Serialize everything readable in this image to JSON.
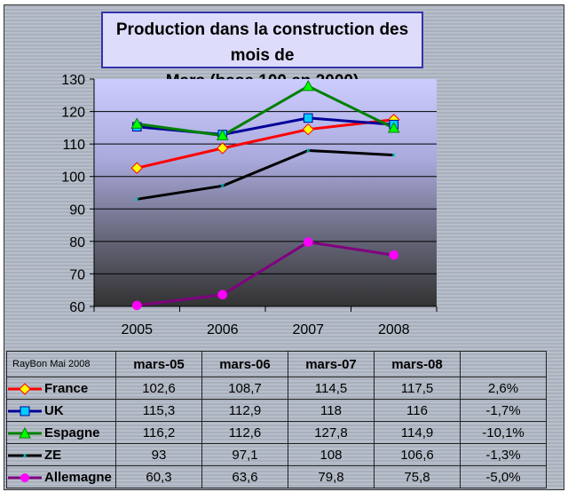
{
  "chart_data": {
    "type": "line",
    "title": "Production dans la construction des mois de Mars (base 100 en 2000)",
    "title_line1": "Production dans la construction des mois de",
    "title_line2": "Mars (base 100 en 2000)",
    "categories": [
      "2005",
      "2006",
      "2007",
      "2008"
    ],
    "ylim": [
      60,
      130
    ],
    "yticks": [
      "60",
      "70",
      "80",
      "90",
      "100",
      "110",
      "120",
      "130"
    ],
    "grid": true,
    "series": [
      {
        "name": "France",
        "values": [
          102.6,
          108.7,
          114.5,
          117.5
        ],
        "color": "#ff0000",
        "marker": "diamond",
        "fill": "#ffff00"
      },
      {
        "name": "UK",
        "values": [
          115.3,
          112.9,
          118,
          116
        ],
        "color": "#000099",
        "marker": "square",
        "fill": "#00ccff"
      },
      {
        "name": "Espagne",
        "values": [
          116.2,
          112.6,
          127.8,
          114.9
        ],
        "color": "#008000",
        "marker": "triangle",
        "fill": "#00ff00"
      },
      {
        "name": "ZE",
        "values": [
          93,
          97.1,
          108,
          106.6
        ],
        "color": "#000000",
        "marker": "x",
        "fill": "#00cccc"
      },
      {
        "name": "Allemagne",
        "values": [
          60.3,
          63.6,
          79.8,
          75.8
        ],
        "color": "#800080",
        "marker": "circle",
        "fill": "#ff00ff"
      }
    ]
  },
  "table": {
    "credit": "RayBon Mai 2008",
    "headers": [
      "mars-05",
      "mars-06",
      "mars-07",
      "mars-08",
      ""
    ],
    "rows": [
      {
        "label": "France",
        "cells": [
          "102,6",
          "108,7",
          "114,5",
          "117,5",
          "2,6%"
        ]
      },
      {
        "label": "UK",
        "cells": [
          "115,3",
          "112,9",
          "118",
          "116",
          "-1,7%"
        ]
      },
      {
        "label": "Espagne",
        "cells": [
          "116,2",
          "112,6",
          "127,8",
          "114,9",
          "-10,1%"
        ]
      },
      {
        "label": "ZE",
        "cells": [
          "93",
          "97,1",
          "108",
          "106,6",
          "-1,3%"
        ]
      },
      {
        "label": "Allemagne",
        "cells": [
          "60,3",
          "63,6",
          "79,8",
          "75,8",
          "-5,0%"
        ]
      }
    ]
  }
}
